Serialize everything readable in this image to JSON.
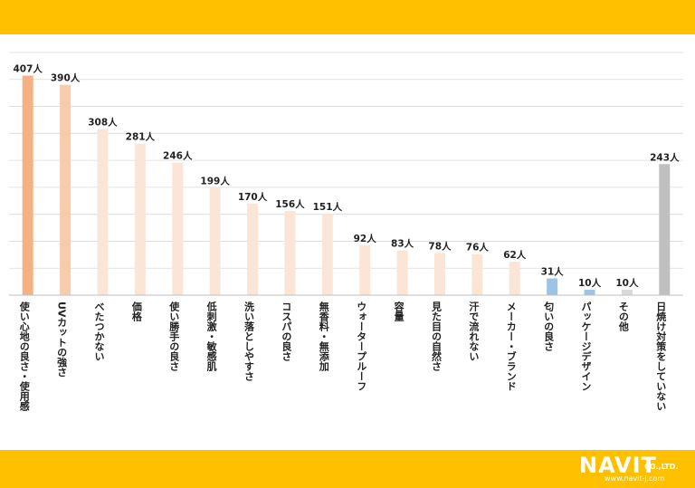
{
  "chart_data": {
    "type": "bar",
    "categories": [
      "使い心地の良さ・使用感",
      "UVカットの強さ",
      "べたつかない",
      "価格",
      "使い勝手の良さ",
      "低刺激・敏感肌",
      "洗い落としやすさ",
      "コスパの良さ",
      "無香料・無添加",
      "ウォータープルーフ",
      "容量",
      "見た目の自然さ",
      "汗で流れない",
      "メーカー・ブランド",
      "匂いの良さ",
      "パッケージデザイン",
      "その他",
      "日焼け対策をしていない"
    ],
    "values": [
      407,
      390,
      308,
      281,
      246,
      199,
      170,
      156,
      151,
      92,
      83,
      78,
      76,
      62,
      31,
      10,
      10,
      243
    ],
    "value_labels": [
      "407人",
      "390人",
      "308人",
      "281人",
      "246人",
      "199人",
      "170人",
      "156人",
      "151人",
      "92人",
      "83人",
      "78人",
      "76人",
      "62人",
      "31人",
      "10人",
      "10人",
      "243人"
    ],
    "colors": [
      "#F4B183",
      "#F8CBAD",
      "#FBE5D6",
      "#FBE5D6",
      "#FBE5D6",
      "#FBE5D6",
      "#FBE5D6",
      "#FBE5D6",
      "#FBE5D6",
      "#FBE5D6",
      "#FBE5D6",
      "#FBE5D6",
      "#FBE5D6",
      "#FBE5D6",
      "#9DC3E6",
      "#9DC3E6",
      "#D9D9D9",
      "#BFBFBF"
    ],
    "ylim": [
      0,
      450
    ],
    "grid": true,
    "title": "",
    "xlabel": "",
    "ylabel": ""
  },
  "logo": {
    "main": "NAVIT",
    "sub": "CO.,LTD.",
    "url": "www.navit-j.com"
  },
  "colors": {
    "band": "#FFC000",
    "grid": "#D9D9D9",
    "axis": "#BFBFBF"
  }
}
